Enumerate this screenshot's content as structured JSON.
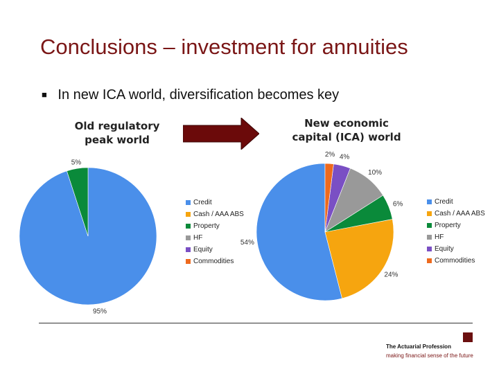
{
  "slide": {
    "title": "Conclusions – investment for annuities",
    "bullet": "In new ICA world, diversification becomes key",
    "left_caption": [
      "Old regulatory",
      "peak world"
    ],
    "right_caption": [
      "New economic",
      "capital (ICA) world"
    ],
    "logo": {
      "name": "The Actuarial Profession",
      "tagline": "making financial sense of the future"
    }
  },
  "colors": {
    "Credit": "#4a8fea",
    "Cash / AAA ABS": "#f6a50f",
    "Property": "#0a8a3a",
    "HF": "#999999",
    "Equity": "#7a4fc4",
    "Commodities": "#ee6a1e",
    "title": "#7a1616",
    "arrow": "#6b0a0a"
  },
  "chart_data": [
    {
      "type": "pie",
      "title": "",
      "categories": [
        "Credit",
        "Cash / AAA ABS",
        "Property",
        "HF",
        "Equity",
        "Commodities"
      ],
      "values": [
        95,
        0,
        5,
        0,
        0,
        0
      ],
      "labels": [
        "95%",
        "",
        "5%",
        "",
        "",
        ""
      ],
      "legend": "right"
    },
    {
      "type": "pie",
      "title": "",
      "categories": [
        "Credit",
        "Cash / AAA ABS",
        "Property",
        "HF",
        "Equity",
        "Commodities"
      ],
      "values": [
        54,
        24,
        6,
        10,
        4,
        2
      ],
      "labels": [
        "54%",
        "24%",
        "6%",
        "10%",
        "4%",
        "2%"
      ],
      "legend": "right"
    }
  ]
}
